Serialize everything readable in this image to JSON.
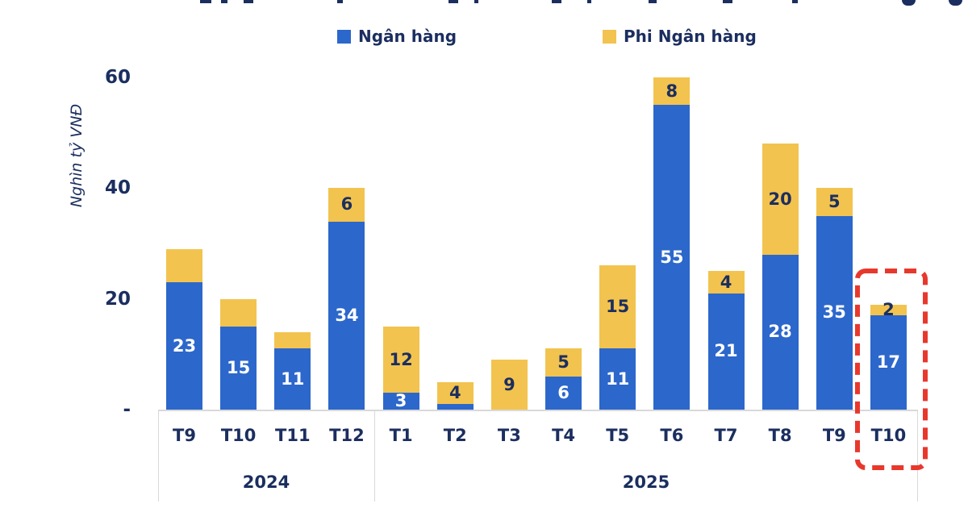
{
  "colors": {
    "bank_blue": "#2C67CB",
    "nonbank_yellow": "#F2C34E",
    "text_navy": "#1B2E5F",
    "grid_gray": "#D9D9D9",
    "highlight_red": "#E8382C",
    "bar_label_on_blue": "#FFFFFF"
  },
  "legend": {
    "items": [
      {
        "label": "Ngân hàng",
        "color": "#2C67CB"
      },
      {
        "label": "Phi Ngân hàng",
        "color": "#F2C34E"
      }
    ]
  },
  "y_axis": {
    "title": "Nghìn tỷ VNĐ",
    "ticks": [
      {
        "label": "60",
        "value": 60
      },
      {
        "label": "40",
        "value": 40
      },
      {
        "label": "20",
        "value": 20
      },
      {
        "label": "-",
        "value": 0
      }
    ]
  },
  "x_axis": {
    "year_groups": [
      {
        "label": "2024",
        "months": 4
      },
      {
        "label": "2025",
        "months": 10
      }
    ]
  },
  "chart_data": {
    "type": "bar",
    "stacked": true,
    "ylabel": "Nghìn tỷ VNĐ",
    "ylim": [
      0,
      60
    ],
    "grid": false,
    "legend_position": "top-center",
    "categories": [
      "T9",
      "T10",
      "T11",
      "T12",
      "T1",
      "T2",
      "T3",
      "T4",
      "T5",
      "T6",
      "T7",
      "T8",
      "T9",
      "T10"
    ],
    "category_years": [
      "2024",
      "2024",
      "2024",
      "2024",
      "2025",
      "2025",
      "2025",
      "2025",
      "2025",
      "2025",
      "2025",
      "2025",
      "2025",
      "2025"
    ],
    "series": [
      {
        "name": "Ngân hàng",
        "color": "#2C67CB",
        "values": [
          23,
          15,
          11,
          34,
          3,
          1,
          0,
          6,
          11,
          55,
          21,
          28,
          35,
          17
        ],
        "shown_labels": [
          "23",
          "15",
          "11",
          "34",
          "3",
          "",
          "",
          "6",
          "11",
          "55",
          "21",
          "28",
          "35",
          "17"
        ]
      },
      {
        "name": "Phi Ngân hàng",
        "color": "#F2C34E",
        "values": [
          6,
          5,
          3,
          6,
          12,
          4,
          9,
          5,
          15,
          8,
          4,
          20,
          5,
          2
        ],
        "shown_labels": [
          "",
          "",
          "",
          "6",
          "12",
          "4",
          "9",
          "5",
          "15",
          "8",
          "4",
          "20",
          "5",
          "2"
        ]
      }
    ],
    "annotations": [
      {
        "type": "red-dashed-box",
        "target_category": "T10",
        "target_year": "2025",
        "color": "#E8382C"
      }
    ]
  }
}
